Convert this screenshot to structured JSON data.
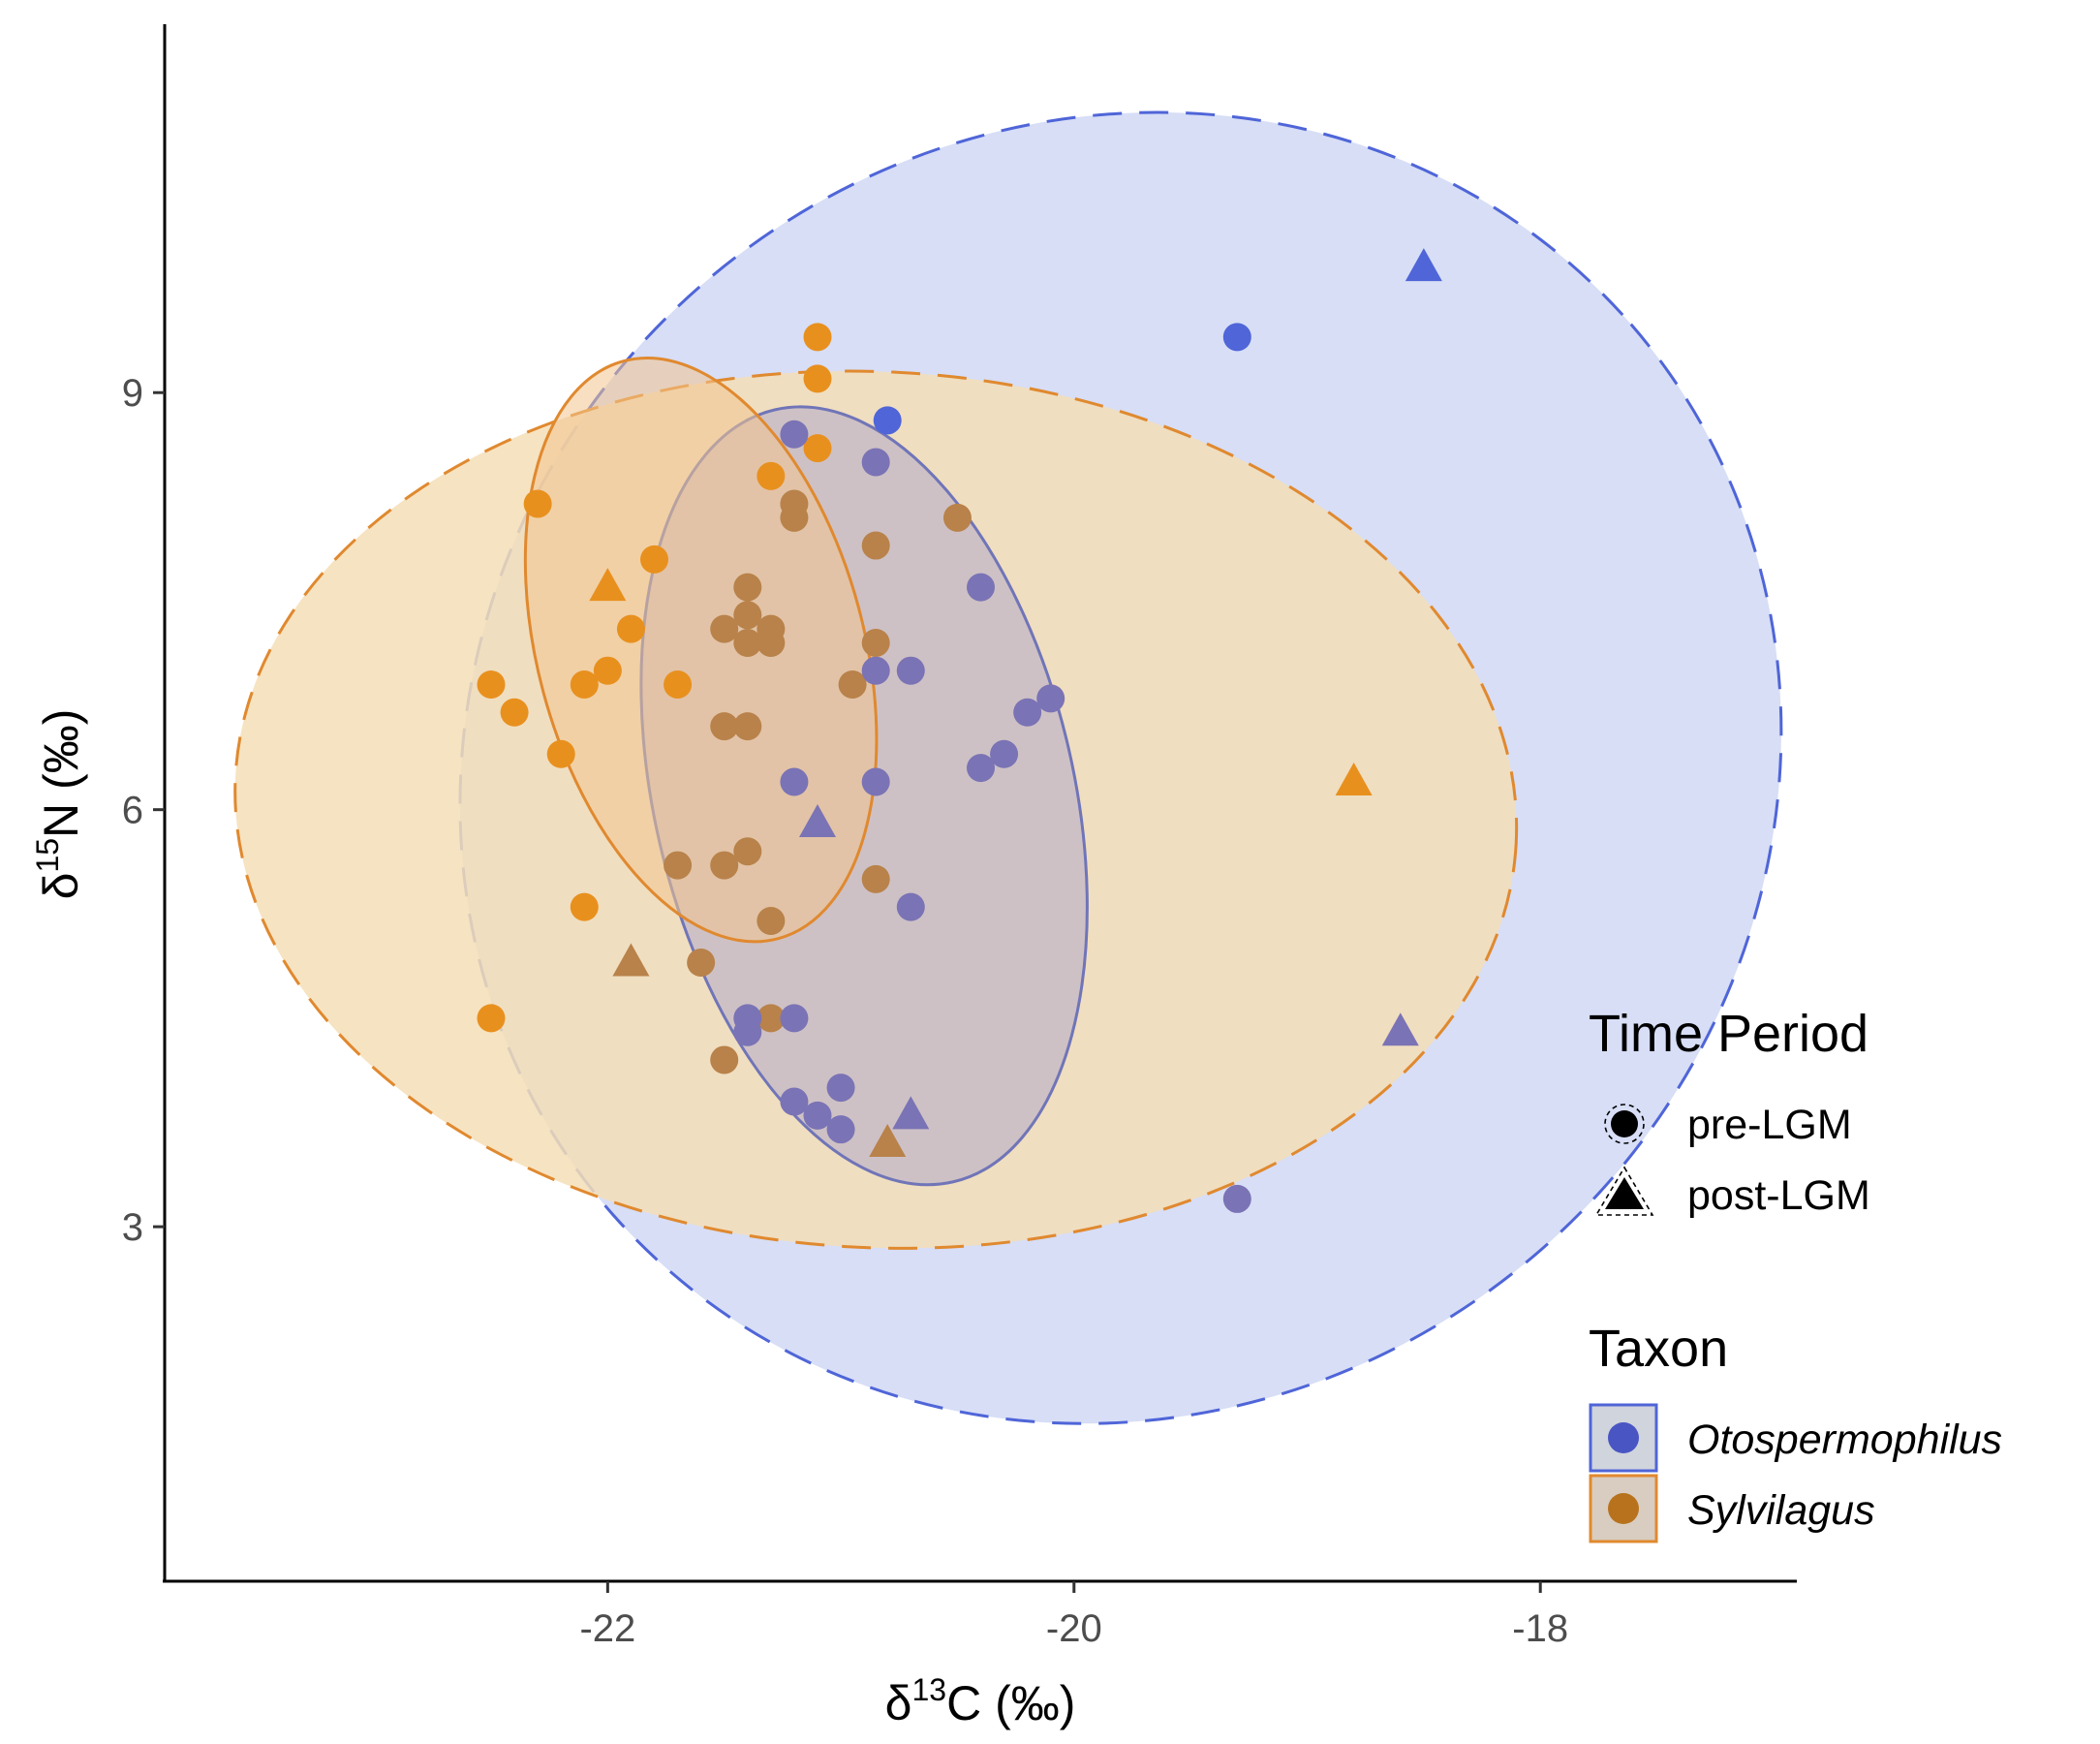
{
  "chart_data": {
    "type": "scatter",
    "xlabel": {
      "prefix": "δ",
      "sup": "13",
      "suffix": "C (‰)"
    },
    "ylabel": {
      "prefix": "δ",
      "sup": "15",
      "suffix": "N (‰)"
    },
    "xlim": [
      -23.9,
      -16.9
    ],
    "ylim": [
      0.45,
      11.65
    ],
    "xticks": [
      -22,
      -20,
      -18
    ],
    "xtick_labels": [
      "-22",
      "-20",
      "-18"
    ],
    "yticks": [
      3,
      6,
      9
    ],
    "ytick_labels": [
      "3",
      "6",
      "9"
    ],
    "grid": false,
    "legend_position": "right",
    "legend": {
      "time_period": {
        "title": "Time Period",
        "items": [
          {
            "label": "pre-LGM",
            "shape": "circle"
          },
          {
            "label": "post-LGM",
            "shape": "triangle"
          }
        ]
      },
      "taxon": {
        "title": "Taxon",
        "items": [
          {
            "label": "Otospermophilus",
            "color": "#4f65d8",
            "fill": "#d0d4dc"
          },
          {
            "label": "Sylvilagus",
            "color": "#e0892f",
            "fill": "#d8cdc0"
          }
        ]
      }
    },
    "colors": {
      "otospermophilus_point": "#4f65d8",
      "otospermophilus_ellipse_fill": "#d0d8f5",
      "otospermophilus_ellipse_stroke": "#4f65d8",
      "otospermophilus_inner_stroke": "#7075b8",
      "sylvilagus_point": "#e8901e",
      "sylvilagus_ellipse_fill": "#f5deb6",
      "sylvilagus_ellipse_stroke": "#e0892f",
      "overlap_point": "#7a73b5",
      "overlap_brown_point": "#b8824a"
    },
    "ellipses": [
      {
        "name": "Otospermophilus",
        "style": "dashed",
        "cx": -19.8,
        "cy": 6.3,
        "rx": 2.9,
        "ry": 4.6,
        "angle": -41,
        "color": "#4f65d8",
        "fill": "#d0d8f5"
      },
      {
        "name": "Sylvilagus",
        "style": "dashed",
        "cx": -20.85,
        "cy": 6.0,
        "rx": 2.75,
        "ry": 3.15,
        "angle": 3,
        "color": "#e0892f",
        "fill": "#f5deb6"
      },
      {
        "name": "Otospermophilus",
        "style": "solid",
        "cx": -20.9,
        "cy": 6.1,
        "rx": 0.9,
        "ry": 2.85,
        "angle": -13,
        "color": "#7075b8",
        "fill": "#b3aac8"
      },
      {
        "name": "Sylvilagus",
        "style": "solid",
        "cx": -21.6,
        "cy": 7.15,
        "rx": 0.7,
        "ry": 2.15,
        "angle": -15,
        "color": "#e0892f",
        "fill": "#f2c58e"
      }
    ],
    "series": [
      {
        "name": "Sylvilagus",
        "color": "#e8901e",
        "points": [
          {
            "x": -21.1,
            "y": 9.4,
            "shape": "circle"
          },
          {
            "x": -21.1,
            "y": 9.1,
            "shape": "circle"
          },
          {
            "x": -21.1,
            "y": 8.6,
            "shape": "circle"
          },
          {
            "x": -21.3,
            "y": 8.4,
            "shape": "circle"
          },
          {
            "x": -22.3,
            "y": 8.2,
            "shape": "circle"
          },
          {
            "x": -21.8,
            "y": 7.8,
            "shape": "circle"
          },
          {
            "x": -22.0,
            "y": 7.6,
            "shape": "triangle"
          },
          {
            "x": -21.9,
            "y": 7.3,
            "shape": "circle"
          },
          {
            "x": -22.0,
            "y": 7.0,
            "shape": "circle"
          },
          {
            "x": -22.1,
            "y": 6.9,
            "shape": "circle"
          },
          {
            "x": -22.5,
            "y": 6.9,
            "shape": "circle"
          },
          {
            "x": -21.7,
            "y": 6.9,
            "shape": "circle"
          },
          {
            "x": -22.4,
            "y": 6.7,
            "shape": "circle"
          },
          {
            "x": -22.2,
            "y": 6.4,
            "shape": "circle"
          },
          {
            "x": -22.1,
            "y": 5.3,
            "shape": "circle"
          },
          {
            "x": -22.5,
            "y": 4.5,
            "shape": "circle"
          },
          {
            "x": -18.8,
            "y": 6.2,
            "shape": "triangle"
          }
        ]
      },
      {
        "name": "Sylvilagus",
        "color": "#b8824a",
        "points": [
          {
            "x": -21.2,
            "y": 8.2,
            "shape": "circle"
          },
          {
            "x": -21.2,
            "y": 8.1,
            "shape": "circle"
          },
          {
            "x": -20.5,
            "y": 8.1,
            "shape": "circle"
          },
          {
            "x": -20.85,
            "y": 7.9,
            "shape": "circle"
          },
          {
            "x": -21.4,
            "y": 7.6,
            "shape": "circle"
          },
          {
            "x": -21.4,
            "y": 7.4,
            "shape": "circle"
          },
          {
            "x": -21.5,
            "y": 7.3,
            "shape": "circle"
          },
          {
            "x": -21.3,
            "y": 7.3,
            "shape": "circle"
          },
          {
            "x": -21.4,
            "y": 7.2,
            "shape": "circle"
          },
          {
            "x": -21.3,
            "y": 7.2,
            "shape": "circle"
          },
          {
            "x": -20.85,
            "y": 7.2,
            "shape": "circle"
          },
          {
            "x": -20.95,
            "y": 6.9,
            "shape": "circle"
          },
          {
            "x": -21.5,
            "y": 6.6,
            "shape": "circle"
          },
          {
            "x": -21.4,
            "y": 6.6,
            "shape": "circle"
          },
          {
            "x": -21.4,
            "y": 5.7,
            "shape": "circle"
          },
          {
            "x": -21.7,
            "y": 5.6,
            "shape": "circle"
          },
          {
            "x": -21.5,
            "y": 5.6,
            "shape": "circle"
          },
          {
            "x": -20.85,
            "y": 5.5,
            "shape": "circle"
          },
          {
            "x": -21.3,
            "y": 5.2,
            "shape": "circle"
          },
          {
            "x": -21.9,
            "y": 4.9,
            "shape": "triangle"
          },
          {
            "x": -21.6,
            "y": 4.9,
            "shape": "circle"
          },
          {
            "x": -21.3,
            "y": 4.5,
            "shape": "circle"
          },
          {
            "x": -21.5,
            "y": 4.2,
            "shape": "circle"
          },
          {
            "x": -20.8,
            "y": 3.6,
            "shape": "triangle"
          }
        ]
      },
      {
        "name": "Otospermophilus",
        "color": "#4f65d8",
        "points": [
          {
            "x": -18.5,
            "y": 9.9,
            "shape": "triangle"
          },
          {
            "x": -19.3,
            "y": 9.4,
            "shape": "circle"
          },
          {
            "x": -20.8,
            "y": 8.8,
            "shape": "circle"
          }
        ]
      },
      {
        "name": "Otospermophilus",
        "color": "#7a73b5",
        "points": [
          {
            "x": -21.2,
            "y": 8.7,
            "shape": "circle"
          },
          {
            "x": -20.85,
            "y": 8.5,
            "shape": "circle"
          },
          {
            "x": -20.4,
            "y": 7.6,
            "shape": "circle"
          },
          {
            "x": -20.85,
            "y": 7.0,
            "shape": "circle"
          },
          {
            "x": -20.7,
            "y": 7.0,
            "shape": "circle"
          },
          {
            "x": -20.1,
            "y": 6.8,
            "shape": "circle"
          },
          {
            "x": -20.2,
            "y": 6.7,
            "shape": "circle"
          },
          {
            "x": -20.3,
            "y": 6.4,
            "shape": "circle"
          },
          {
            "x": -20.4,
            "y": 6.3,
            "shape": "circle"
          },
          {
            "x": -21.2,
            "y": 6.2,
            "shape": "circle"
          },
          {
            "x": -20.85,
            "y": 6.2,
            "shape": "circle"
          },
          {
            "x": -21.1,
            "y": 5.9,
            "shape": "triangle"
          },
          {
            "x": -20.7,
            "y": 5.3,
            "shape": "circle"
          },
          {
            "x": -21.4,
            "y": 4.5,
            "shape": "circle"
          },
          {
            "x": -21.2,
            "y": 4.5,
            "shape": "circle"
          },
          {
            "x": -21.4,
            "y": 4.4,
            "shape": "circle"
          },
          {
            "x": -18.6,
            "y": 4.4,
            "shape": "triangle"
          },
          {
            "x": -21.0,
            "y": 4.0,
            "shape": "circle"
          },
          {
            "x": -21.2,
            "y": 3.9,
            "shape": "circle"
          },
          {
            "x": -21.1,
            "y": 3.8,
            "shape": "circle"
          },
          {
            "x": -20.7,
            "y": 3.8,
            "shape": "triangle"
          },
          {
            "x": -21.0,
            "y": 3.7,
            "shape": "circle"
          },
          {
            "x": -19.3,
            "y": 3.2,
            "shape": "circle"
          }
        ]
      }
    ]
  }
}
